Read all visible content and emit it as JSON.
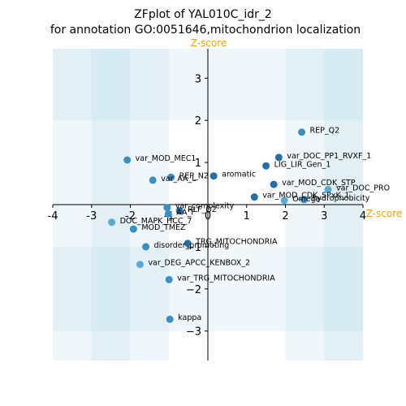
{
  "chart_data": {
    "type": "scatter",
    "title": "ZFplot of YAL010C_idr_2",
    "subtitle": "for annotation GO:0051646,mitochondrion localization",
    "xlabel": "Z-score",
    "ylabel": "Z-score",
    "label_color": "#f0a30a",
    "xlim": [
      -4,
      4
    ],
    "ylim": [
      -3.7,
      3.7
    ],
    "xticks": [
      -4,
      -3,
      -2,
      -1,
      0,
      1,
      2,
      3,
      4
    ],
    "yticks": [
      -3,
      -2,
      -1,
      1,
      2,
      3
    ],
    "tick_labels_x": [
      "-4",
      "-3",
      "-2",
      "-1",
      "0",
      "1",
      "2",
      "3",
      "4"
    ],
    "tick_labels_y": [
      "−3",
      "−2",
      "−1",
      "1",
      "2",
      "3"
    ],
    "band_color": "#add8e6",
    "points": [
      {
        "x": 2.42,
        "y": 1.72,
        "label": "REP_Q2",
        "color": "#3a8fc2"
      },
      {
        "x": -2.08,
        "y": 1.06,
        "label": "var_MOD_MEC1",
        "color": "#3a8fc2"
      },
      {
        "x": 1.83,
        "y": 1.12,
        "label": "var_DOC_PP1_RVXF_1",
        "color": "#1f6fa8"
      },
      {
        "x": 1.5,
        "y": 0.92,
        "label": "LIG_LIR_Gen_1",
        "color": "#1f6fa8"
      },
      {
        "x": -0.95,
        "y": 0.65,
        "label": "REP_N2",
        "color": "#3a8fc2"
      },
      {
        "x": 0.15,
        "y": 0.68,
        "label": "aromatic",
        "color": "#1f6fa8"
      },
      {
        "x": -1.42,
        "y": 0.58,
        "label": "var_AA_L",
        "color": "#3a8fc2"
      },
      {
        "x": 1.7,
        "y": 0.48,
        "label": "var_MOD_CDK_STP",
        "color": "#1f6fa8"
      },
      {
        "x": 3.1,
        "y": 0.36,
        "label": "var_DOC_PRO",
        "color": "#5aaad8"
      },
      {
        "x": 1.2,
        "y": 0.18,
        "label": "var_MOD_CDK_SPxK_1",
        "color": "#1f6fa8"
      },
      {
        "x": 2.48,
        "y": 0.12,
        "label": "hydrophobicity",
        "color": "#3a8fc2"
      },
      {
        "x": 1.97,
        "y": 0.1,
        "label": "Omega",
        "color": "#5aaad8"
      },
      {
        "x": -1.05,
        "y": -0.07,
        "label": "var_complexity",
        "color": "#3a8fc2"
      },
      {
        "x": -0.73,
        "y": -0.15,
        "label": "RLF_Q2",
        "color": "#1f6fa8"
      },
      {
        "x": -1.02,
        "y": -0.22,
        "label": "AA_F",
        "color": "#3a8fc2"
      },
      {
        "x": -2.48,
        "y": -0.42,
        "label": "DOC_MAPK_HCC_7",
        "color": "#5aaad8"
      },
      {
        "x": -1.92,
        "y": -0.58,
        "label": "MOD_TMEZ",
        "color": "#3a8fc2"
      },
      {
        "x": -0.52,
        "y": -0.92,
        "label": "TRG_MITOCHONDRIA",
        "color": "#1f6fa8"
      },
      {
        "x": -1.6,
        "y": -1.0,
        "label": "disorder_promoting",
        "color": "#3a8fc2"
      },
      {
        "x": -1.75,
        "y": -1.42,
        "label": "var_DEG_APCC_KENBOX_2",
        "color": "#5aaad8"
      },
      {
        "x": -1.0,
        "y": -1.78,
        "label": "var_TRG_MITOCHONDRIA",
        "color": "#3a8fc2"
      },
      {
        "x": -0.98,
        "y": -2.72,
        "label": "kappa",
        "color": "#3a8fc2"
      }
    ]
  }
}
